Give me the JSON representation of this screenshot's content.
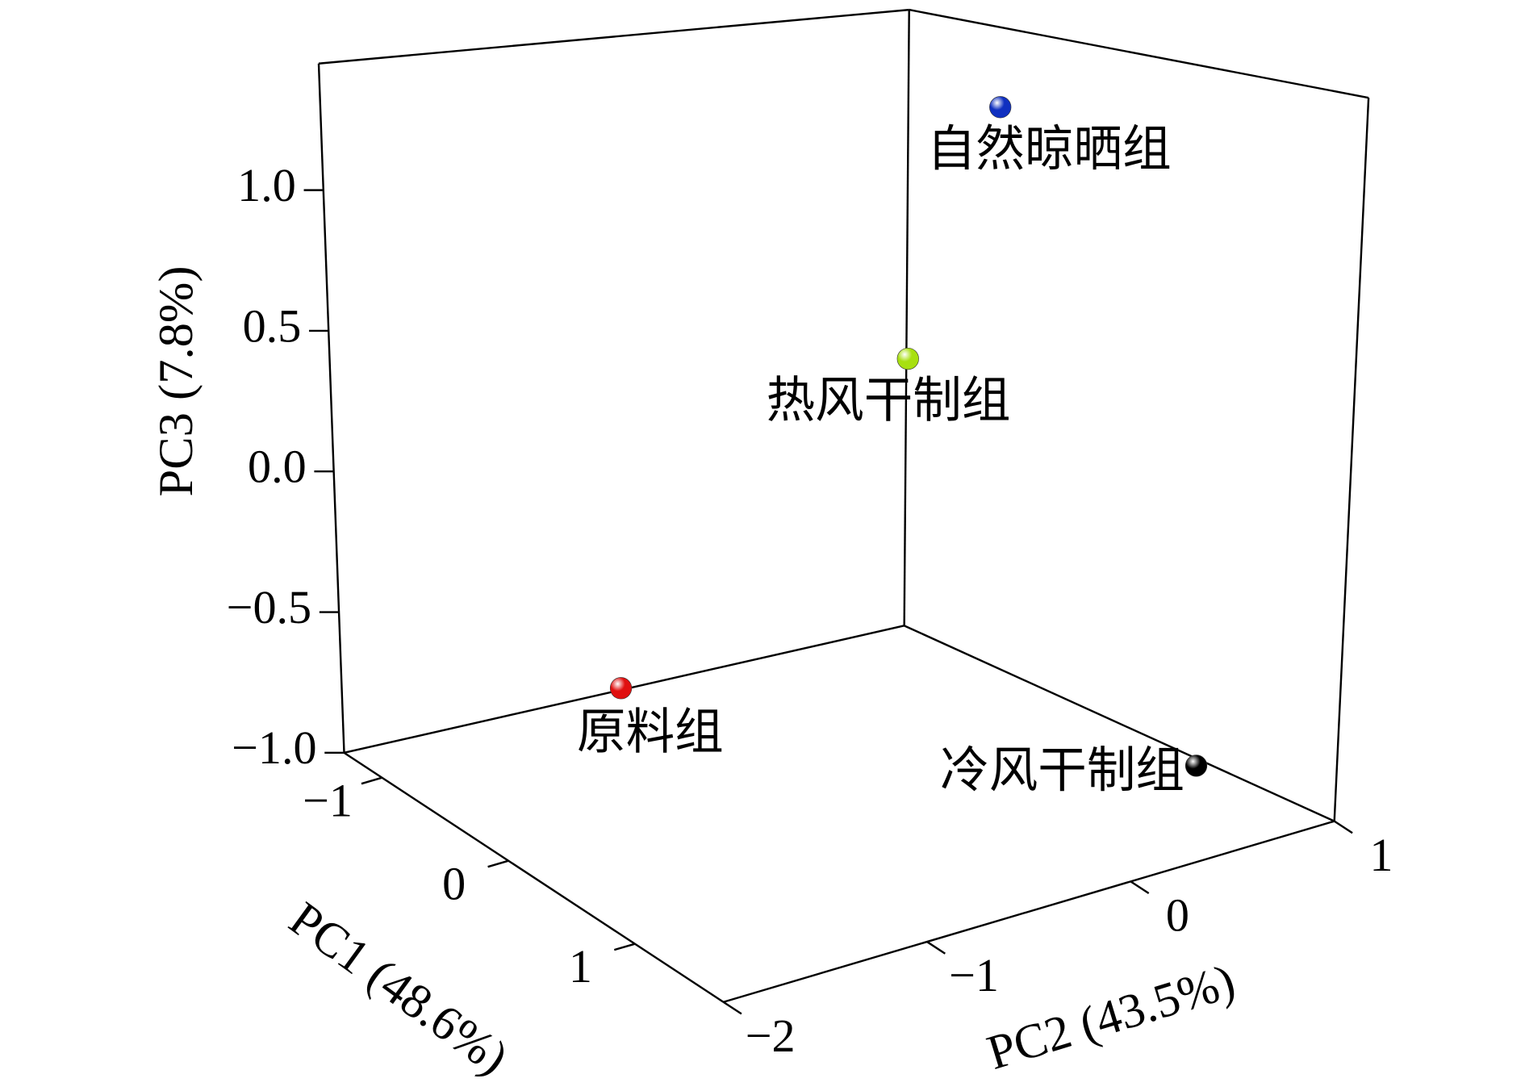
{
  "chart_data": {
    "type": "scatter3d",
    "xlabel": "PC1 (48.6%)",
    "ylabel": "PC2 (43.5%)",
    "zlabel": "PC3 (7.8%)",
    "xlim": [
      -1.3,
      1.7
    ],
    "ylim": [
      -2,
      1
    ],
    "zlim": [
      -1,
      1.45
    ],
    "xticks": [
      {
        "value": -1,
        "label": "−1"
      },
      0,
      1
    ],
    "yticks": [
      {
        "value": -2,
        "label": "−2"
      },
      {
        "value": -1,
        "label": "−1"
      },
      0,
      1
    ],
    "zticks": [
      {
        "value": -1,
        "label": "−1.0"
      },
      {
        "value": -0.5,
        "label": "−0.5"
      },
      {
        "value": 0,
        "label": "0.0"
      },
      0.5,
      {
        "value": 1,
        "label": "1.0"
      }
    ],
    "series": [
      {
        "name": "原料组",
        "color": "#e01010",
        "x": [
          -1.24
        ],
        "y": [
          -0.56
        ],
        "z": [
          -0.97
        ]
      },
      {
        "name": "冷风干制组",
        "color": "#000000",
        "x": [
          0.86
        ],
        "y": [
          0.91
        ],
        "z": [
          -0.98
        ]
      },
      {
        "name": "热风干制组",
        "color": "#a8e010",
        "x": [
          -0.7
        ],
        "y": [
          0.55
        ],
        "z": [
          0.23
        ]
      },
      {
        "name": "自然晾晒组",
        "color": "#1030c0",
        "x": [
          -0.5
        ],
        "y": [
          0.85
        ],
        "z": [
          1.18
        ]
      }
    ]
  }
}
